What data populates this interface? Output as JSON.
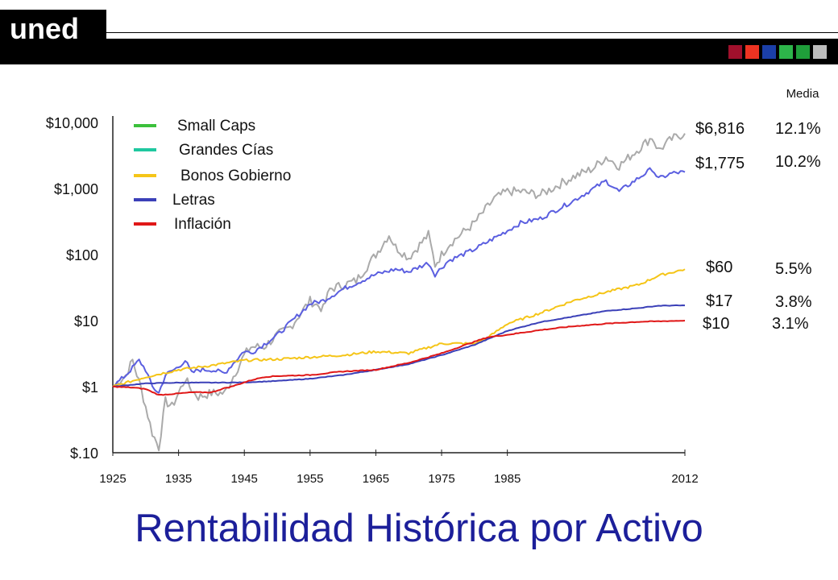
{
  "header": {
    "logo_text": "uned",
    "squares": [
      "#a0102c",
      "#ee3322",
      "#1b3fa8",
      "#2db54a",
      "#1f9e3a",
      "#bdbdbd"
    ]
  },
  "main_title": "Rentabilidad Histórica por Activo",
  "chart_data": {
    "type": "line",
    "title": "Rentabilidad Histórica por Activo",
    "xlabel": "",
    "ylabel": "",
    "y_scale": "log",
    "ylim": [
      0.1,
      10000
    ],
    "xlim": [
      1925,
      2012
    ],
    "grid": false,
    "legend_position": "top-left",
    "x_ticks": [
      1925,
      1935,
      1945,
      1955,
      1965,
      1975,
      1985,
      2012
    ],
    "x_tick_labels": [
      "1925",
      "1935",
      "1945",
      "1955",
      "1965",
      "1975",
      "1985",
      "2012"
    ],
    "y_ticks": [
      0.1,
      1,
      10,
      100,
      1000,
      10000
    ],
    "y_tick_labels": [
      "$.10",
      "$1",
      "$10",
      "$100",
      "$1,000",
      "$10,000"
    ],
    "legend_entries": [
      "Small Caps",
      "Grandes Cías",
      "Bonos Gobierno",
      "Letras",
      "Inflación"
    ],
    "legend_colors": [
      "#3cc03c",
      "#1fc8a0",
      "#f5c518",
      "#3b40b8",
      "#e01818"
    ],
    "media_header": "Media",
    "series": [
      {
        "color": "#aaaaaa",
        "end_label": "$6,816",
        "mean_return": "12.1%",
        "x": [
          1925,
          1927,
          1928,
          1929,
          1930,
          1931,
          1932,
          1933,
          1934,
          1935,
          1936,
          1937,
          1938,
          1940,
          1942,
          1945,
          1946,
          1948,
          1950,
          1952,
          1955,
          1957,
          1958,
          1962,
          1965,
          1967,
          1968,
          1970,
          1973,
          1974,
          1976,
          1980,
          1983,
          1985,
          1987,
          1990,
          1995,
          1998,
          2000,
          2002,
          2007,
          2008,
          2010,
          2012
        ],
        "y": [
          1,
          1.5,
          2.5,
          1.2,
          0.5,
          0.2,
          0.12,
          0.6,
          0.5,
          0.8,
          1.3,
          0.9,
          0.7,
          0.8,
          0.8,
          3,
          4,
          4,
          6,
          8,
          20,
          15,
          30,
          40,
          100,
          200,
          130,
          90,
          200,
          70,
          140,
          300,
          700,
          900,
          900,
          800,
          1500,
          2000,
          3000,
          2200,
          6000,
          3800,
          5600,
          6816
        ]
      },
      {
        "color": "#5b5fe0",
        "end_label": "$1,775",
        "mean_return": "10.2%",
        "x": [
          1925,
          1927,
          1929,
          1930,
          1931,
          1932,
          1933,
          1935,
          1936,
          1937,
          1938,
          1940,
          1942,
          1945,
          1946,
          1950,
          1955,
          1957,
          1960,
          1965,
          1968,
          1970,
          1973,
          1974,
          1976,
          1980,
          1985,
          1987,
          1990,
          1995,
          2000,
          2002,
          2007,
          2008,
          2010,
          2012
        ],
        "y": [
          1,
          1.5,
          2.5,
          1.8,
          1,
          0.8,
          1.5,
          2,
          2.5,
          1.6,
          1.8,
          1.8,
          1.6,
          3.5,
          3.2,
          6,
          18,
          20,
          30,
          50,
          60,
          55,
          75,
          50,
          80,
          120,
          230,
          300,
          350,
          650,
          1300,
          900,
          2000,
          1400,
          1700,
          1775
        ]
      },
      {
        "color": "#f5c518",
        "end_label": "$60",
        "mean_return": "5.5%",
        "x": [
          1925,
          1930,
          1935,
          1940,
          1945,
          1950,
          1955,
          1960,
          1965,
          1970,
          1975,
          1980,
          1982,
          1985,
          1990,
          1995,
          2000,
          2005,
          2008,
          2012
        ],
        "y": [
          1,
          1.4,
          1.8,
          2.1,
          2.5,
          2.6,
          2.8,
          3,
          3.4,
          3.2,
          4.5,
          4.5,
          5.5,
          9,
          13,
          20,
          27,
          35,
          48,
          60
        ]
      },
      {
        "color": "#3b40b8",
        "end_label": "$17",
        "mean_return": "3.8%",
        "x": [
          1925,
          1930,
          1935,
          1940,
          1945,
          1950,
          1955,
          1960,
          1965,
          1970,
          1975,
          1980,
          1985,
          1990,
          1995,
          2000,
          2005,
          2008,
          2012
        ],
        "y": [
          1,
          1.12,
          1.15,
          1.15,
          1.16,
          1.22,
          1.32,
          1.5,
          1.8,
          2.2,
          3,
          4.3,
          7,
          9.5,
          11.5,
          14,
          15.5,
          16.8,
          17
        ]
      },
      {
        "color": "#e01818",
        "end_label": "$10",
        "mean_return": "3.1%",
        "x": [
          1925,
          1928,
          1930,
          1932,
          1933,
          1937,
          1940,
          1942,
          1943,
          1946,
          1948,
          1950,
          1955,
          1960,
          1965,
          1970,
          1975,
          1980,
          1982,
          1985,
          1990,
          1995,
          2000,
          2005,
          2012
        ],
        "y": [
          1,
          0.97,
          0.92,
          0.75,
          0.76,
          0.82,
          0.82,
          0.95,
          1,
          1.25,
          1.4,
          1.45,
          1.5,
          1.7,
          1.8,
          2.3,
          3.2,
          4.8,
          5.6,
          6.1,
          7.2,
          8.2,
          9,
          9.6,
          10
        ]
      }
    ]
  }
}
